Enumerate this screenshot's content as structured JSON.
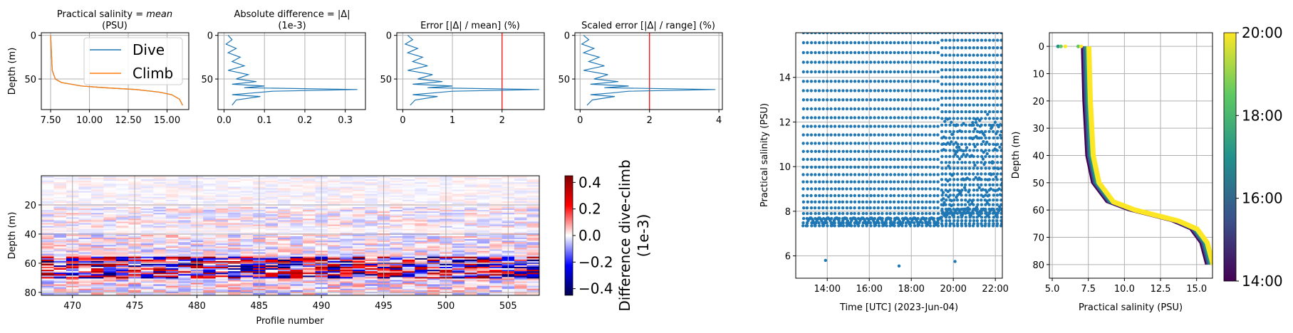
{
  "figure": {
    "profile_panels": [
      {
        "id": "salinity",
        "title_parts": [
          "Practical salinity ",
          "= ",
          "mean"
        ],
        "subtitle": "(PSU)",
        "ylabel": "Depth (m)",
        "xticks": [
          "7.50",
          "10.00",
          "12.50",
          "15.00"
        ],
        "yticks": [
          "0",
          "50"
        ]
      },
      {
        "id": "absdiff",
        "title": "Absolute difference = |Δ|",
        "subtitle": "(1e-3)",
        "xticks": [
          "0.0",
          "0.1",
          "0.2",
          "0.3"
        ],
        "yticks": [
          "0",
          "50"
        ]
      },
      {
        "id": "error",
        "title": "Error [|Δ| / mean] (%)",
        "xticks": [
          "0",
          "1",
          "2"
        ],
        "yticks": [
          "0",
          "50"
        ],
        "vline": 2
      },
      {
        "id": "scaled",
        "title": "Scaled error [|Δ| / range] (%)",
        "xticks": [
          "0",
          "2",
          "4"
        ],
        "yticks": [
          "0",
          "50"
        ],
        "vline": 2
      }
    ],
    "legend": {
      "entries": [
        "Dive",
        "Climb"
      ],
      "colors": [
        "#1f77b4",
        "#ff7f0e"
      ]
    },
    "heatmap": {
      "ylabel": "Depth (m)",
      "xlabel": "Profile number",
      "xticks": [
        "470",
        "475",
        "480",
        "485",
        "490",
        "495",
        "500",
        "505"
      ],
      "yticks": [
        "20",
        "40",
        "60",
        "80"
      ],
      "colorbar_label_1": "Difference dive-climb",
      "colorbar_label_2": "(1e-3)",
      "colorbar_ticks": [
        "0.4",
        "0.2",
        "0.0",
        "−0.2",
        "−0.4"
      ]
    },
    "timeseries": {
      "ylabel": "Practical salinity (PSU)",
      "xlabel": "Time [UTC] (2023-Jun-04)",
      "xticks": [
        "14:00",
        "16:00",
        "18:00",
        "20:00",
        "22:00"
      ],
      "yticks": [
        "6",
        "8",
        "10",
        "12",
        "14"
      ],
      "color": "#1f77b4"
    },
    "ts_profile": {
      "ylabel": "Depth (m)",
      "xlabel": "Practical salinity (PSU)",
      "xticks": [
        "5.0",
        "7.5",
        "10.0",
        "12.5",
        "15.0"
      ],
      "yticks": [
        "0",
        "10",
        "20",
        "30",
        "40",
        "50",
        "60",
        "70",
        "80"
      ],
      "colorbar_ticks": [
        "20:00",
        "18:00",
        "16:00",
        "14:00"
      ]
    }
  },
  "chart_data": [
    {
      "type": "line",
      "title": "Practical salinity = mean (PSU)",
      "xlabel": "",
      "ylabel": "Depth (m)",
      "xlim": [
        6.9,
        16.4
      ],
      "ylim": [
        85,
        -3
      ],
      "series": [
        {
          "name": "Dive",
          "x": [
            7.5,
            7.55,
            7.6,
            7.8,
            8.2,
            9.5,
            11.0,
            13.0,
            14.5,
            15.3,
            15.8,
            16.0
          ],
          "y": [
            0,
            20,
            40,
            50,
            54,
            58,
            60,
            62,
            65,
            68,
            73,
            80
          ]
        },
        {
          "name": "Climb",
          "x": [
            7.5,
            7.55,
            7.6,
            7.8,
            8.2,
            9.5,
            11.0,
            13.0,
            14.5,
            15.3,
            15.8,
            16.0
          ],
          "y": [
            0,
            20,
            40,
            50,
            54,
            58,
            60,
            62,
            65,
            68,
            73,
            80
          ]
        }
      ]
    },
    {
      "type": "line",
      "title": "Absolute difference = |Δ| (1e-3)",
      "xlim": [
        -0.015,
        0.35
      ],
      "ylim": [
        85,
        -3
      ],
      "x": [
        0.01,
        0.02,
        0.005,
        0.03,
        0.01,
        0.04,
        0.02,
        0.05,
        0.01,
        0.06,
        0.03,
        0.08,
        0.02,
        0.1,
        0.05,
        0.33,
        0.12,
        0.07,
        0.02,
        0.09,
        0.03,
        0.02
      ],
      "y": [
        0,
        5,
        10,
        15,
        20,
        25,
        30,
        35,
        40,
        45,
        50,
        53,
        56,
        58,
        60,
        62,
        64,
        66,
        68,
        70,
        74,
        80
      ]
    },
    {
      "type": "line",
      "title": "Error [|Δ| / mean] (%)",
      "xlim": [
        -0.12,
        2.85
      ],
      "ylim": [
        85,
        -3
      ],
      "x": [
        0.1,
        0.2,
        0.05,
        0.3,
        0.1,
        0.4,
        0.2,
        0.5,
        0.1,
        0.6,
        0.3,
        0.8,
        0.2,
        1.0,
        0.5,
        2.75,
        1.0,
        0.6,
        0.2,
        0.7,
        0.25,
        0.15
      ],
      "y": [
        0,
        5,
        10,
        15,
        20,
        25,
        30,
        35,
        40,
        45,
        50,
        53,
        56,
        58,
        60,
        62,
        64,
        66,
        68,
        70,
        74,
        80
      ]
    },
    {
      "type": "line",
      "title": "Scaled error [|Δ| / range] (%)",
      "xlim": [
        -0.15,
        4.1
      ],
      "ylim": [
        85,
        -3
      ],
      "x": [
        0.1,
        0.25,
        0.05,
        0.4,
        0.1,
        0.55,
        0.25,
        0.7,
        0.1,
        0.8,
        0.4,
        1.1,
        0.3,
        1.4,
        0.7,
        3.9,
        1.4,
        0.9,
        0.3,
        1.0,
        0.35,
        0.2
      ],
      "y": [
        0,
        5,
        10,
        15,
        20,
        25,
        30,
        35,
        40,
        45,
        50,
        53,
        56,
        58,
        60,
        62,
        64,
        66,
        68,
        70,
        74,
        80
      ]
    },
    {
      "type": "heatmap",
      "title": "",
      "xlabel": "Profile number",
      "ylabel": "Depth (m)",
      "xlim": [
        467.5,
        507.5
      ],
      "ylim": [
        82,
        0
      ],
      "colorbar": "Difference dive-climb (1e-3)",
      "clim": [
        -0.45,
        0.45
      ]
    },
    {
      "type": "scatter",
      "xlabel": "Time [UTC] (2023-Jun-04)",
      "ylabel": "Practical salinity (PSU)",
      "xlim": [
        "12:30",
        "22:20"
      ],
      "ylim": [
        5,
        16
      ],
      "outliers": [
        {
          "x": "13:55",
          "y": 5.8
        },
        {
          "x": "17:25",
          "y": 5.55
        },
        {
          "x": "20:05",
          "y": 5.75
        }
      ]
    },
    {
      "type": "scatter",
      "xlabel": "Practical salinity (PSU)",
      "ylabel": "Depth (m)",
      "xlim": [
        4.8,
        16.1
      ],
      "ylim": [
        85,
        -5
      ],
      "colorbar": [
        "14:00",
        "20:00"
      ],
      "x": [
        7.3,
        7.35,
        7.4,
        7.5,
        7.6,
        8.0,
        9.0,
        10.5,
        12.0,
        13.5,
        14.8,
        15.5,
        15.9
      ],
      "y": [
        0,
        10,
        20,
        30,
        40,
        50,
        57,
        60,
        62,
        64,
        67,
        72,
        80
      ]
    }
  ]
}
